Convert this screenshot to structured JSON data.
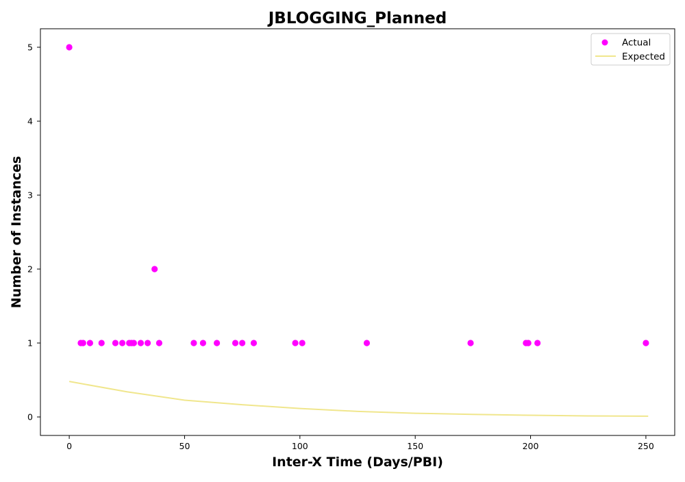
{
  "chart_data": {
    "type": "scatter",
    "title": "JBLOGGING_Planned",
    "xlabel": "Inter-X Time (Days/PBI)",
    "ylabel": "Number of Instances",
    "xlim": [
      -12.5,
      262.5
    ],
    "ylim": [
      -0.25,
      5.25
    ],
    "xticks": [
      0,
      50,
      100,
      150,
      200,
      250
    ],
    "yticks": [
      0,
      1,
      2,
      3,
      4,
      5
    ],
    "grid": false,
    "legend_position": "top-right",
    "series": [
      {
        "name": "Actual",
        "kind": "scatter",
        "color": "#ff00ff",
        "points": [
          [
            0,
            5
          ],
          [
            5,
            1
          ],
          [
            6,
            1
          ],
          [
            9,
            1
          ],
          [
            14,
            1
          ],
          [
            20,
            1
          ],
          [
            23,
            1
          ],
          [
            26,
            1
          ],
          [
            27,
            1
          ],
          [
            28,
            1
          ],
          [
            31,
            1
          ],
          [
            34,
            1
          ],
          [
            37,
            2
          ],
          [
            39,
            1
          ],
          [
            54,
            1
          ],
          [
            58,
            1
          ],
          [
            64,
            1
          ],
          [
            72,
            1
          ],
          [
            75,
            1
          ],
          [
            80,
            1
          ],
          [
            98,
            1
          ],
          [
            101,
            1
          ],
          [
            129,
            1
          ],
          [
            174,
            1
          ],
          [
            198,
            1
          ],
          [
            199,
            1
          ],
          [
            203,
            1
          ],
          [
            250,
            1
          ]
        ]
      },
      {
        "name": "Expected",
        "kind": "line",
        "color": "#f0e68c",
        "x": [
          0,
          25,
          50,
          75,
          100,
          125,
          150,
          175,
          200,
          225,
          251
        ],
        "y": [
          0.48,
          0.34,
          0.227,
          0.165,
          0.115,
          0.075,
          0.05,
          0.035,
          0.023,
          0.014,
          0.01
        ]
      }
    ]
  }
}
